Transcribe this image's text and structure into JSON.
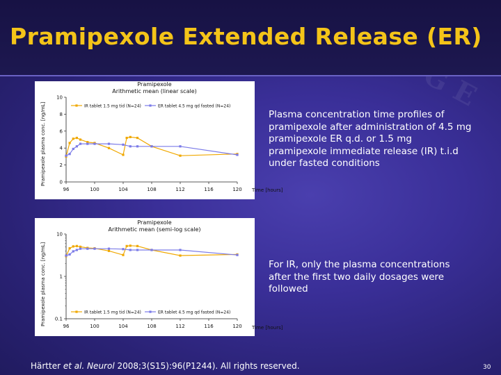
{
  "slide": {
    "title": "Pramipexole Extended Release (ER)",
    "description_1": "Plasma concentration time profiles of pramipexole after administration of 4.5 mg pramipexole ER q.d. or 1.5 mg pramipexole immediate release (IR) t.i.d under fasted conditions",
    "description_2": "For IR, only the plasma concentrations after the first two daily dosages were followed",
    "citation": {
      "author": "Härtter ",
      "etal": "et al. Neurol",
      "rest": " 2008;3(S15):96(P1244). All rights reserved."
    },
    "page_number": "30"
  },
  "colors": {
    "ir_series": "#f0a800",
    "er_series": "#7b7be8"
  },
  "chart_data": [
    {
      "type": "line",
      "title": "Pramipexole",
      "subtitle": "Arithmetic mean (linear scale)",
      "ylabel": "Pramipexole plasma conc. [ng/mL]",
      "xlabel": "Time [hours]",
      "ylim": [
        0,
        10
      ],
      "xlim": [
        96,
        120
      ],
      "yscale": "linear",
      "x_ticks": [
        "96",
        "100",
        "104",
        "108",
        "112",
        "116",
        "120"
      ],
      "y_ticks": [
        "0",
        "2",
        "4",
        "6",
        "8",
        "10"
      ],
      "grid": false,
      "legend_position": "top",
      "series": [
        {
          "name": "IR tablet 1.5 mg tid (N=24)",
          "color": "#f0a800",
          "x": [
            96,
            96.5,
            97,
            97.5,
            98,
            99,
            100,
            102,
            104,
            104.5,
            105,
            106,
            108,
            112,
            120
          ],
          "y": [
            3.0,
            4.6,
            5.1,
            5.2,
            5.0,
            4.7,
            4.6,
            4.0,
            3.2,
            5.2,
            5.3,
            5.2,
            4.2,
            3.1,
            3.3
          ]
        },
        {
          "name": "ER tablet 4.5 mg qd fasted (N=24)",
          "color": "#7b7be8",
          "x": [
            96,
            96.5,
            97,
            97.5,
            98,
            99,
            100,
            102,
            104,
            105,
            106,
            108,
            112,
            120
          ],
          "y": [
            3.1,
            3.3,
            3.9,
            4.2,
            4.5,
            4.5,
            4.5,
            4.5,
            4.4,
            4.2,
            4.2,
            4.2,
            4.2,
            3.2
          ]
        }
      ]
    },
    {
      "type": "line",
      "title": "Pramipexole",
      "subtitle": "Arithmetic mean (semi-log scale)",
      "ylabel": "Pramipexole plasma conc. [ng/mL]",
      "xlabel": "Time [hours]",
      "ylim": [
        0.1,
        10
      ],
      "xlim": [
        96,
        120
      ],
      "yscale": "log",
      "x_ticks": [
        "96",
        "100",
        "104",
        "108",
        "112",
        "116",
        "120"
      ],
      "y_ticks": [
        "0.1",
        "1",
        "10"
      ],
      "grid": false,
      "legend_position": "bottom",
      "series": [
        {
          "name": "IR tablet 1.5 mg tid (N=24)",
          "color": "#f0a800",
          "x": [
            96,
            96.5,
            97,
            97.5,
            98,
            99,
            100,
            102,
            104,
            104.5,
            105,
            106,
            108,
            112,
            120
          ],
          "y": [
            3.0,
            4.6,
            5.1,
            5.2,
            5.0,
            4.7,
            4.6,
            4.0,
            3.2,
            5.2,
            5.3,
            5.2,
            4.2,
            3.1,
            3.3
          ]
        },
        {
          "name": "ER tablet 4.5 mg qd fasted (N=24)",
          "color": "#7b7be8",
          "x": [
            96,
            96.5,
            97,
            97.5,
            98,
            99,
            100,
            102,
            104,
            105,
            106,
            108,
            112,
            120
          ],
          "y": [
            3.1,
            3.3,
            3.9,
            4.2,
            4.5,
            4.5,
            4.5,
            4.5,
            4.4,
            4.2,
            4.2,
            4.2,
            4.2,
            3.2
          ]
        }
      ]
    }
  ]
}
